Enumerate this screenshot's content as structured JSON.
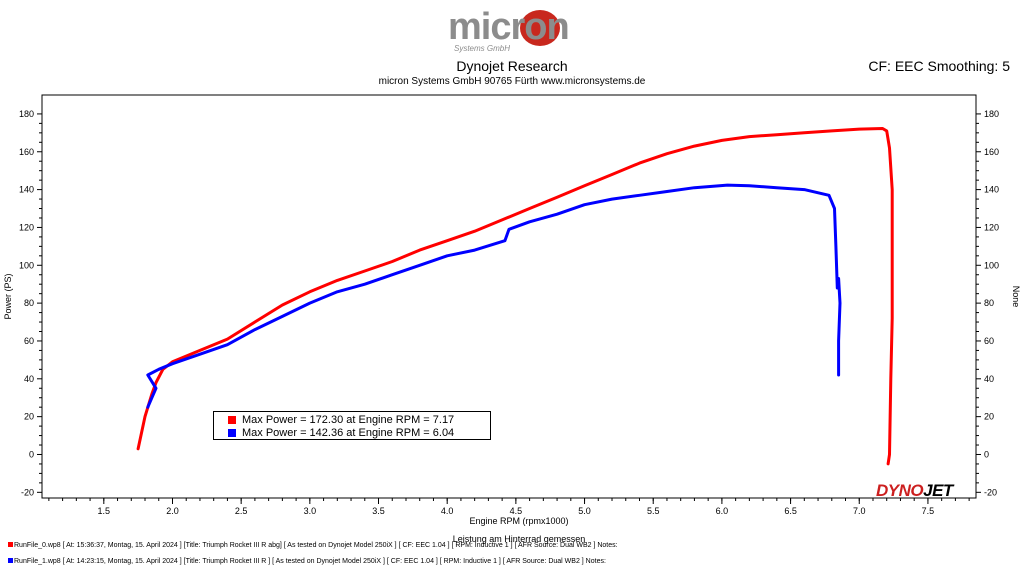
{
  "header": {
    "logo_text": "micron",
    "logo_sub": "Systems GmbH",
    "title": "Dynojet Research",
    "subtitle": "micron Systems GmbH  90765 Fürth www.micronsystems.de",
    "settings": "CF: EEC Smoothing: 5"
  },
  "brand": {
    "part1": "DYNO",
    "part2": "JET"
  },
  "chart_data": {
    "type": "line",
    "xlabel": "Engine RPM (rpmx1000)",
    "xlabel2": "Leistung am Hinterrad gemessen",
    "ylabel": "Power (PS)",
    "ylabel_right": "None",
    "xlim": [
      1.05,
      7.85
    ],
    "ylim": [
      -23,
      190
    ],
    "x_ticks": [
      1.5,
      2.0,
      2.5,
      3.0,
      3.5,
      4.0,
      4.5,
      5.0,
      5.5,
      6.0,
      6.5,
      7.0,
      7.5
    ],
    "x_tick_labels": [
      "1.5",
      "2.0",
      "2.5",
      "3.0",
      "3.5",
      "4.0",
      "4.5",
      "5.0",
      "5.5",
      "6.0",
      "6.5",
      "7.0",
      "7.5"
    ],
    "y_ticks": [
      -20,
      0,
      20,
      40,
      60,
      80,
      100,
      120,
      140,
      160,
      180
    ],
    "y_tick_labels": [
      "-20",
      "0",
      "20",
      "40",
      "60",
      "80",
      "100",
      "120",
      "140",
      "160",
      "180"
    ],
    "grid": false,
    "legend_position": "bottom-left",
    "colors": {
      "run0": "#ff0000",
      "run1": "#0000ff"
    },
    "series": [
      {
        "name": "run0",
        "color": "#ff0000",
        "legend": "Max Power = 172.30 at Engine RPM = 7.17",
        "points": [
          [
            1.75,
            3
          ],
          [
            1.8,
            20
          ],
          [
            1.85,
            32
          ],
          [
            1.88,
            38
          ],
          [
            1.93,
            45
          ],
          [
            2.0,
            49
          ],
          [
            2.2,
            55
          ],
          [
            2.4,
            61
          ],
          [
            2.6,
            70
          ],
          [
            2.8,
            79
          ],
          [
            3.0,
            86
          ],
          [
            3.2,
            92
          ],
          [
            3.4,
            97
          ],
          [
            3.6,
            102
          ],
          [
            3.8,
            108
          ],
          [
            4.0,
            113
          ],
          [
            4.2,
            118
          ],
          [
            4.4,
            124
          ],
          [
            4.6,
            130
          ],
          [
            4.8,
            136
          ],
          [
            5.0,
            142
          ],
          [
            5.2,
            148
          ],
          [
            5.4,
            154
          ],
          [
            5.6,
            159
          ],
          [
            5.8,
            163
          ],
          [
            6.0,
            166
          ],
          [
            6.2,
            168
          ],
          [
            6.4,
            169
          ],
          [
            6.6,
            170
          ],
          [
            6.8,
            171
          ],
          [
            7.0,
            172
          ],
          [
            7.17,
            172.3
          ],
          [
            7.2,
            171
          ],
          [
            7.22,
            162
          ],
          [
            7.24,
            140
          ],
          [
            7.24,
            100
          ],
          [
            7.24,
            72
          ],
          [
            7.23,
            40
          ],
          [
            7.22,
            0
          ],
          [
            7.21,
            -5
          ]
        ]
      },
      {
        "name": "run1",
        "color": "#0000ff",
        "legend": "Max Power = 142.36 at Engine RPM = 6.04",
        "points": [
          [
            1.82,
            25
          ],
          [
            1.85,
            30
          ],
          [
            1.88,
            35
          ],
          [
            1.82,
            42
          ],
          [
            1.9,
            45
          ],
          [
            2.0,
            48
          ],
          [
            2.2,
            53
          ],
          [
            2.4,
            58
          ],
          [
            2.6,
            66
          ],
          [
            2.8,
            73
          ],
          [
            3.0,
            80
          ],
          [
            3.2,
            86
          ],
          [
            3.4,
            90
          ],
          [
            3.6,
            95
          ],
          [
            3.8,
            100
          ],
          [
            4.0,
            105
          ],
          [
            4.2,
            108
          ],
          [
            4.42,
            113
          ],
          [
            4.45,
            119
          ],
          [
            4.6,
            123
          ],
          [
            4.8,
            127
          ],
          [
            5.0,
            132
          ],
          [
            5.2,
            135
          ],
          [
            5.4,
            137
          ],
          [
            5.6,
            139
          ],
          [
            5.8,
            141
          ],
          [
            6.04,
            142.36
          ],
          [
            6.2,
            142
          ],
          [
            6.4,
            141
          ],
          [
            6.6,
            140
          ],
          [
            6.78,
            137
          ],
          [
            6.82,
            130
          ],
          [
            6.83,
            110
          ],
          [
            6.84,
            88
          ],
          [
            6.85,
            93
          ],
          [
            6.86,
            80
          ],
          [
            6.85,
            60
          ],
          [
            6.85,
            42
          ]
        ]
      }
    ]
  },
  "footer": {
    "lines": [
      "RunFile_0.wp8  [ At: 15:36:37, Montag, 15. April 2024 ] [Title: Triumph Rocket III R abg]  [ As tested on Dynojet Model 250iX ] [ CF: EEC 1.04 ] [ RPM: Inductive 1 ] [ AFR Source: Dual WB2 ] Notes:",
      "RunFile_1.wp8  [ At: 14:23:15, Montag, 15. April 2024 ] [Title: Triumph Rocket III R ]  [ As tested on Dynojet Model 250iX ] [ CF: EEC 1.04 ] [ RPM: Inductive 1 ] [ AFR Source: Dual WB2 ] Notes:"
    ]
  }
}
